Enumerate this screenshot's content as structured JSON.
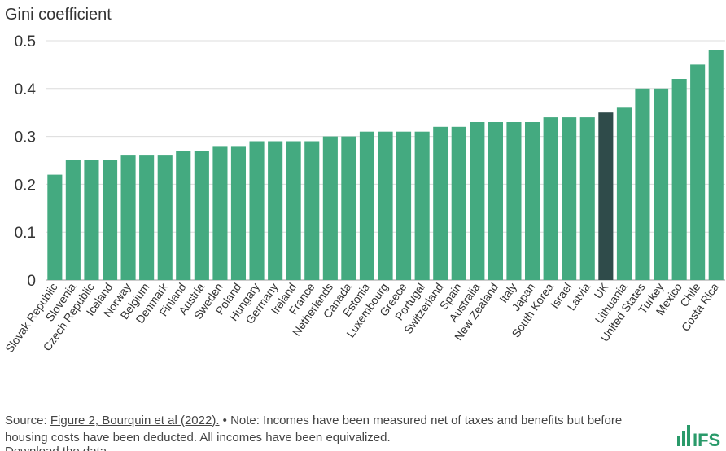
{
  "chart_data": {
    "type": "bar",
    "ylabel": "Gini coefficient",
    "ylim": [
      0,
      0.5
    ],
    "yticks": [
      "0",
      "0.1",
      "0.2",
      "0.3",
      "0.4",
      "0.5"
    ],
    "categories": [
      "Slovak Republic",
      "Slovenia",
      "Czech Republic",
      "Iceland",
      "Norway",
      "Belgium",
      "Denmark",
      "Finland",
      "Austria",
      "Sweden",
      "Poland",
      "Hungary",
      "Germany",
      "Ireland",
      "France",
      "Netherlands",
      "Canada",
      "Estonia",
      "Luxembourg",
      "Greece",
      "Portugal",
      "Switzerland",
      "Spain",
      "Australia",
      "New Zealand",
      "Italy",
      "Japan",
      "South Korea",
      "Israel",
      "Latvia",
      "UK",
      "Lithuania",
      "United States",
      "Turkey",
      "Mexico",
      "Chile",
      "Costa Rica"
    ],
    "values": [
      0.22,
      0.25,
      0.25,
      0.25,
      0.26,
      0.26,
      0.26,
      0.27,
      0.27,
      0.28,
      0.28,
      0.29,
      0.29,
      0.29,
      0.29,
      0.3,
      0.3,
      0.31,
      0.31,
      0.31,
      0.31,
      0.32,
      0.32,
      0.33,
      0.33,
      0.33,
      0.33,
      0.34,
      0.34,
      0.34,
      0.35,
      0.36,
      0.4,
      0.4,
      0.42,
      0.45,
      0.48
    ],
    "highlight": "UK",
    "colors": {
      "bar": "#44aa80",
      "highlight": "#2f4b4a",
      "grid": "#dcdcdc"
    }
  },
  "footer": {
    "source_label": "Source: ",
    "source_link": "Figure 2, Bourquin et al (2022).",
    "note": " • Note: Incomes have been measured net of taxes and benefits but before housing costs have been deducted. All incomes have been equivalized.",
    "cutoff": "Download the data"
  },
  "logo": {
    "text": "IFS",
    "icon": "bar-chart-icon",
    "color": "#2a9a6a"
  }
}
